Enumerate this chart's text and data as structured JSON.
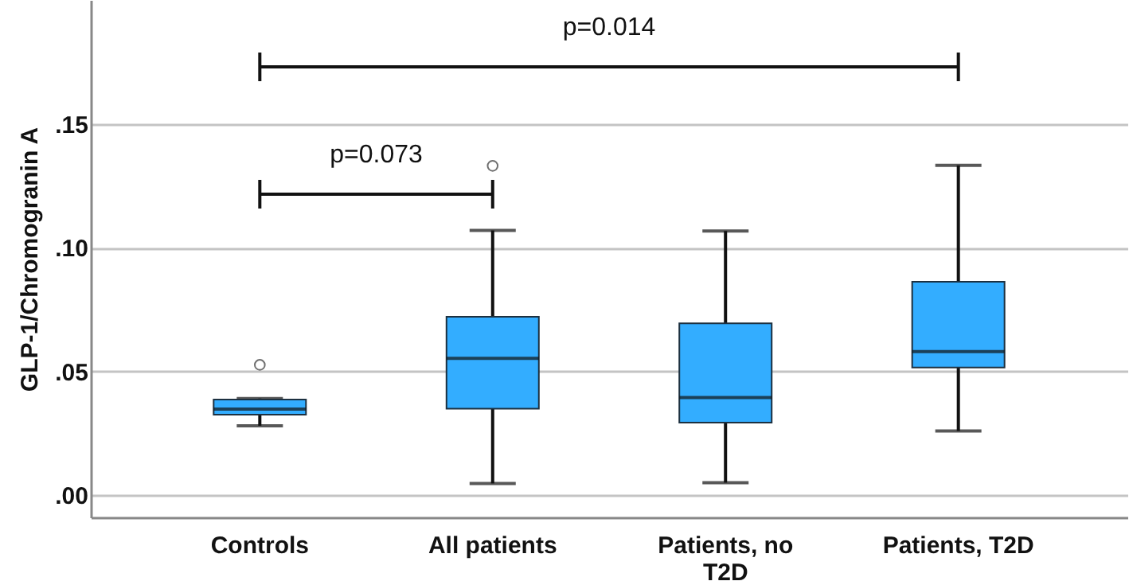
{
  "chart_data": {
    "type": "box",
    "ylabel": "GLP-1/Chromogranin A",
    "categories": [
      "Controls",
      "All patients",
      "Patients, no T2D",
      "Patients, T2D"
    ],
    "series": [
      {
        "color": "#33adff",
        "boxes": [
          {
            "low": 0.028,
            "q1": 0.0325,
            "median": 0.0347,
            "q3": 0.0386,
            "high": 0.039,
            "outliers": [
              0.0526
            ]
          },
          {
            "low": 0.0047,
            "q1": 0.0349,
            "median": 0.0552,
            "q3": 0.072,
            "high": 0.1069,
            "outliers": [
              0.133
            ]
          },
          {
            "low": 0.005,
            "q1": 0.0293,
            "median": 0.0394,
            "q3": 0.0694,
            "high": 0.1067
          },
          {
            "low": 0.0259,
            "q1": 0.0515,
            "median": 0.058,
            "q3": 0.0862,
            "high": 0.1332
          }
        ]
      }
    ],
    "ylim": [
      -0.009,
      0.2
    ],
    "yticks": [
      {
        "value": 0,
        "label": ".00"
      },
      {
        "value": 0.05,
        "label": ".05"
      },
      {
        "value": 0.1,
        "label": ".10"
      },
      {
        "value": 0.15,
        "label": ".15"
      }
    ],
    "grid": "y",
    "annotations": [
      "p=0.014",
      "p=0.073"
    ]
  }
}
